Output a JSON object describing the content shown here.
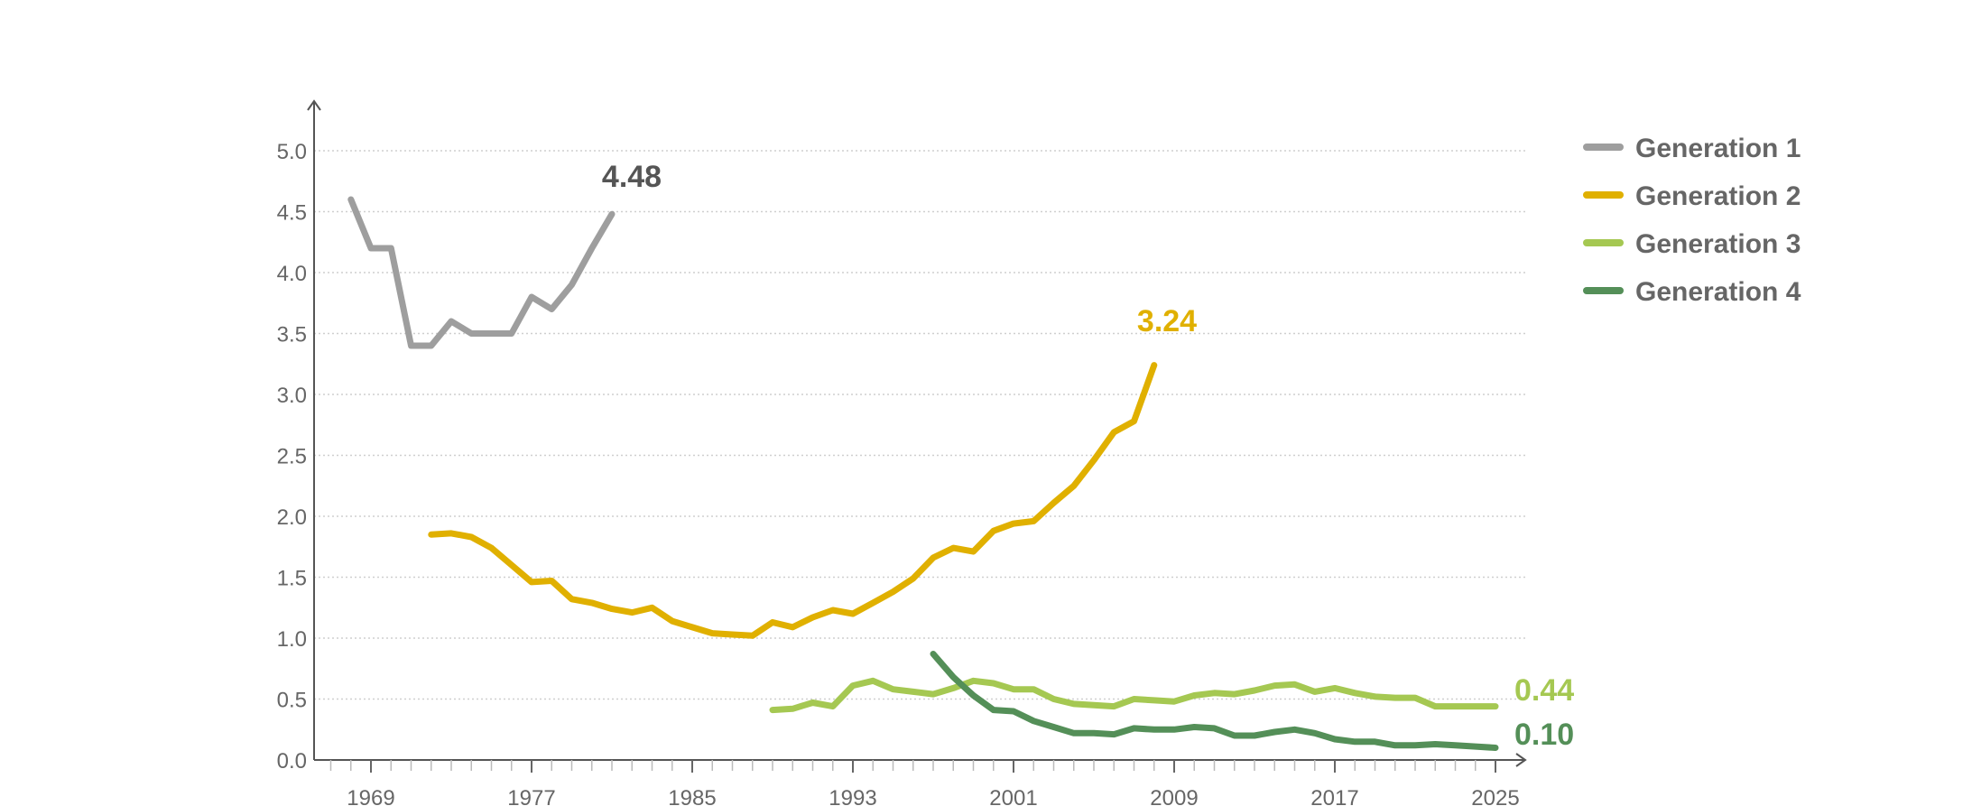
{
  "chart_data": {
    "type": "line",
    "title": "",
    "xlabel": "",
    "ylabel": "",
    "xlim": [
      1966,
      2026
    ],
    "ylim": [
      0,
      5.0
    ],
    "grid": "horizontal dotted",
    "legend_placement": "top-right",
    "x_ticks": [
      "1969",
      "1977",
      "1985",
      "1993",
      "2001",
      "2009",
      "2017",
      "2025"
    ],
    "y_ticks": [
      "0.0",
      "0.5",
      "1.0",
      "1.5",
      "2.0",
      "2.5",
      "3.0",
      "3.5",
      "4.0",
      "4.5",
      "5.0"
    ],
    "series": [
      {
        "name": "Generation 1",
        "color": "#9e9e9e",
        "end_label": "4.48",
        "end_label_color": "#555555",
        "x": [
          1968,
          1969,
          1970,
          1971,
          1972,
          1973,
          1974,
          1975,
          1976,
          1977,
          1978,
          1979,
          1980,
          1981
        ],
        "values": [
          4.6,
          4.2,
          4.2,
          3.4,
          3.4,
          3.6,
          3.5,
          3.5,
          3.5,
          3.8,
          3.7,
          3.9,
          4.2,
          4.48
        ]
      },
      {
        "name": "Generation 2",
        "color": "#e0b000",
        "end_label": "3.24",
        "end_label_color": "#e0b000",
        "x": [
          1972,
          1973,
          1974,
          1975,
          1976,
          1977,
          1978,
          1979,
          1980,
          1981,
          1982,
          1983,
          1984,
          1985,
          1986,
          1987,
          1988,
          1989,
          1990,
          1991,
          1992,
          1993,
          1994,
          1995,
          1996,
          1997,
          1998,
          1999,
          2000,
          2001,
          2002,
          2003,
          2004,
          2005,
          2006,
          2007,
          2008
        ],
        "values": [
          1.85,
          1.86,
          1.83,
          1.74,
          1.6,
          1.46,
          1.47,
          1.32,
          1.29,
          1.24,
          1.21,
          1.25,
          1.14,
          1.09,
          1.04,
          1.03,
          1.02,
          1.13,
          1.09,
          1.17,
          1.23,
          1.2,
          1.29,
          1.38,
          1.49,
          1.66,
          1.74,
          1.71,
          1.88,
          1.94,
          1.96,
          2.11,
          2.25,
          2.46,
          2.69,
          2.78,
          3.24
        ]
      },
      {
        "name": "Generation 3",
        "color": "#a5c852",
        "end_label": "0.44",
        "end_label_color": "#a5c852",
        "x": [
          1989,
          1990,
          1991,
          1992,
          1993,
          1994,
          1995,
          1996,
          1997,
          1998,
          1999,
          2000,
          2001,
          2002,
          2003,
          2004,
          2005,
          2006,
          2007,
          2008,
          2009,
          2010,
          2011,
          2012,
          2013,
          2014,
          2015,
          2016,
          2017,
          2018,
          2019,
          2020,
          2021,
          2022,
          2023,
          2024,
          2025
        ],
        "values": [
          0.41,
          0.42,
          0.47,
          0.44,
          0.61,
          0.65,
          0.58,
          0.56,
          0.54,
          0.59,
          0.65,
          0.63,
          0.58,
          0.58,
          0.5,
          0.46,
          0.45,
          0.44,
          0.5,
          0.49,
          0.48,
          0.53,
          0.55,
          0.54,
          0.57,
          0.61,
          0.62,
          0.56,
          0.59,
          0.55,
          0.52,
          0.51,
          0.51,
          0.44,
          0.44,
          0.44,
          0.44
        ]
      },
      {
        "name": "Generation 4",
        "color": "#548f58",
        "end_label": "0.10",
        "end_label_color": "#548f58",
        "x": [
          1997,
          1998,
          1999,
          2000,
          2001,
          2002,
          2003,
          2004,
          2005,
          2006,
          2007,
          2008,
          2009,
          2010,
          2011,
          2012,
          2013,
          2014,
          2015,
          2016,
          2017,
          2018,
          2019,
          2020,
          2021,
          2022,
          2023,
          2024,
          2025
        ],
        "values": [
          0.87,
          0.68,
          0.53,
          0.41,
          0.4,
          0.32,
          0.27,
          0.22,
          0.22,
          0.21,
          0.26,
          0.25,
          0.25,
          0.27,
          0.26,
          0.2,
          0.2,
          0.23,
          0.25,
          0.22,
          0.17,
          0.15,
          0.15,
          0.12,
          0.12,
          0.13,
          0.12,
          0.11,
          0.1
        ]
      }
    ]
  }
}
